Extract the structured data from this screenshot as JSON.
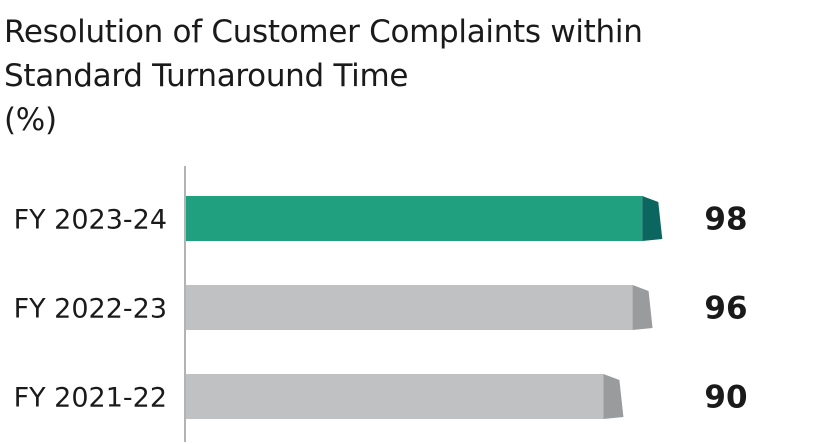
{
  "chart_data": {
    "type": "bar",
    "orientation": "horizontal",
    "title_lines": [
      "Resolution of Customer Complaints within",
      "Standard Turnaround Time",
      "(%)"
    ],
    "categories": [
      "FY 2023-24",
      "FY 2022-23",
      "FY 2021-22"
    ],
    "values": [
      98,
      96,
      90
    ],
    "value_labels": [
      "98",
      "96",
      "90"
    ],
    "xlim": [
      0,
      100
    ],
    "grid": false,
    "legend": "none",
    "colors": {
      "highlight_face": "#21a07f",
      "highlight_side": "#0b6660",
      "default_face": "#c0c1c3",
      "default_side": "#9a9b9d",
      "axis": "#9a9a9a"
    },
    "highlight_index": 0
  }
}
